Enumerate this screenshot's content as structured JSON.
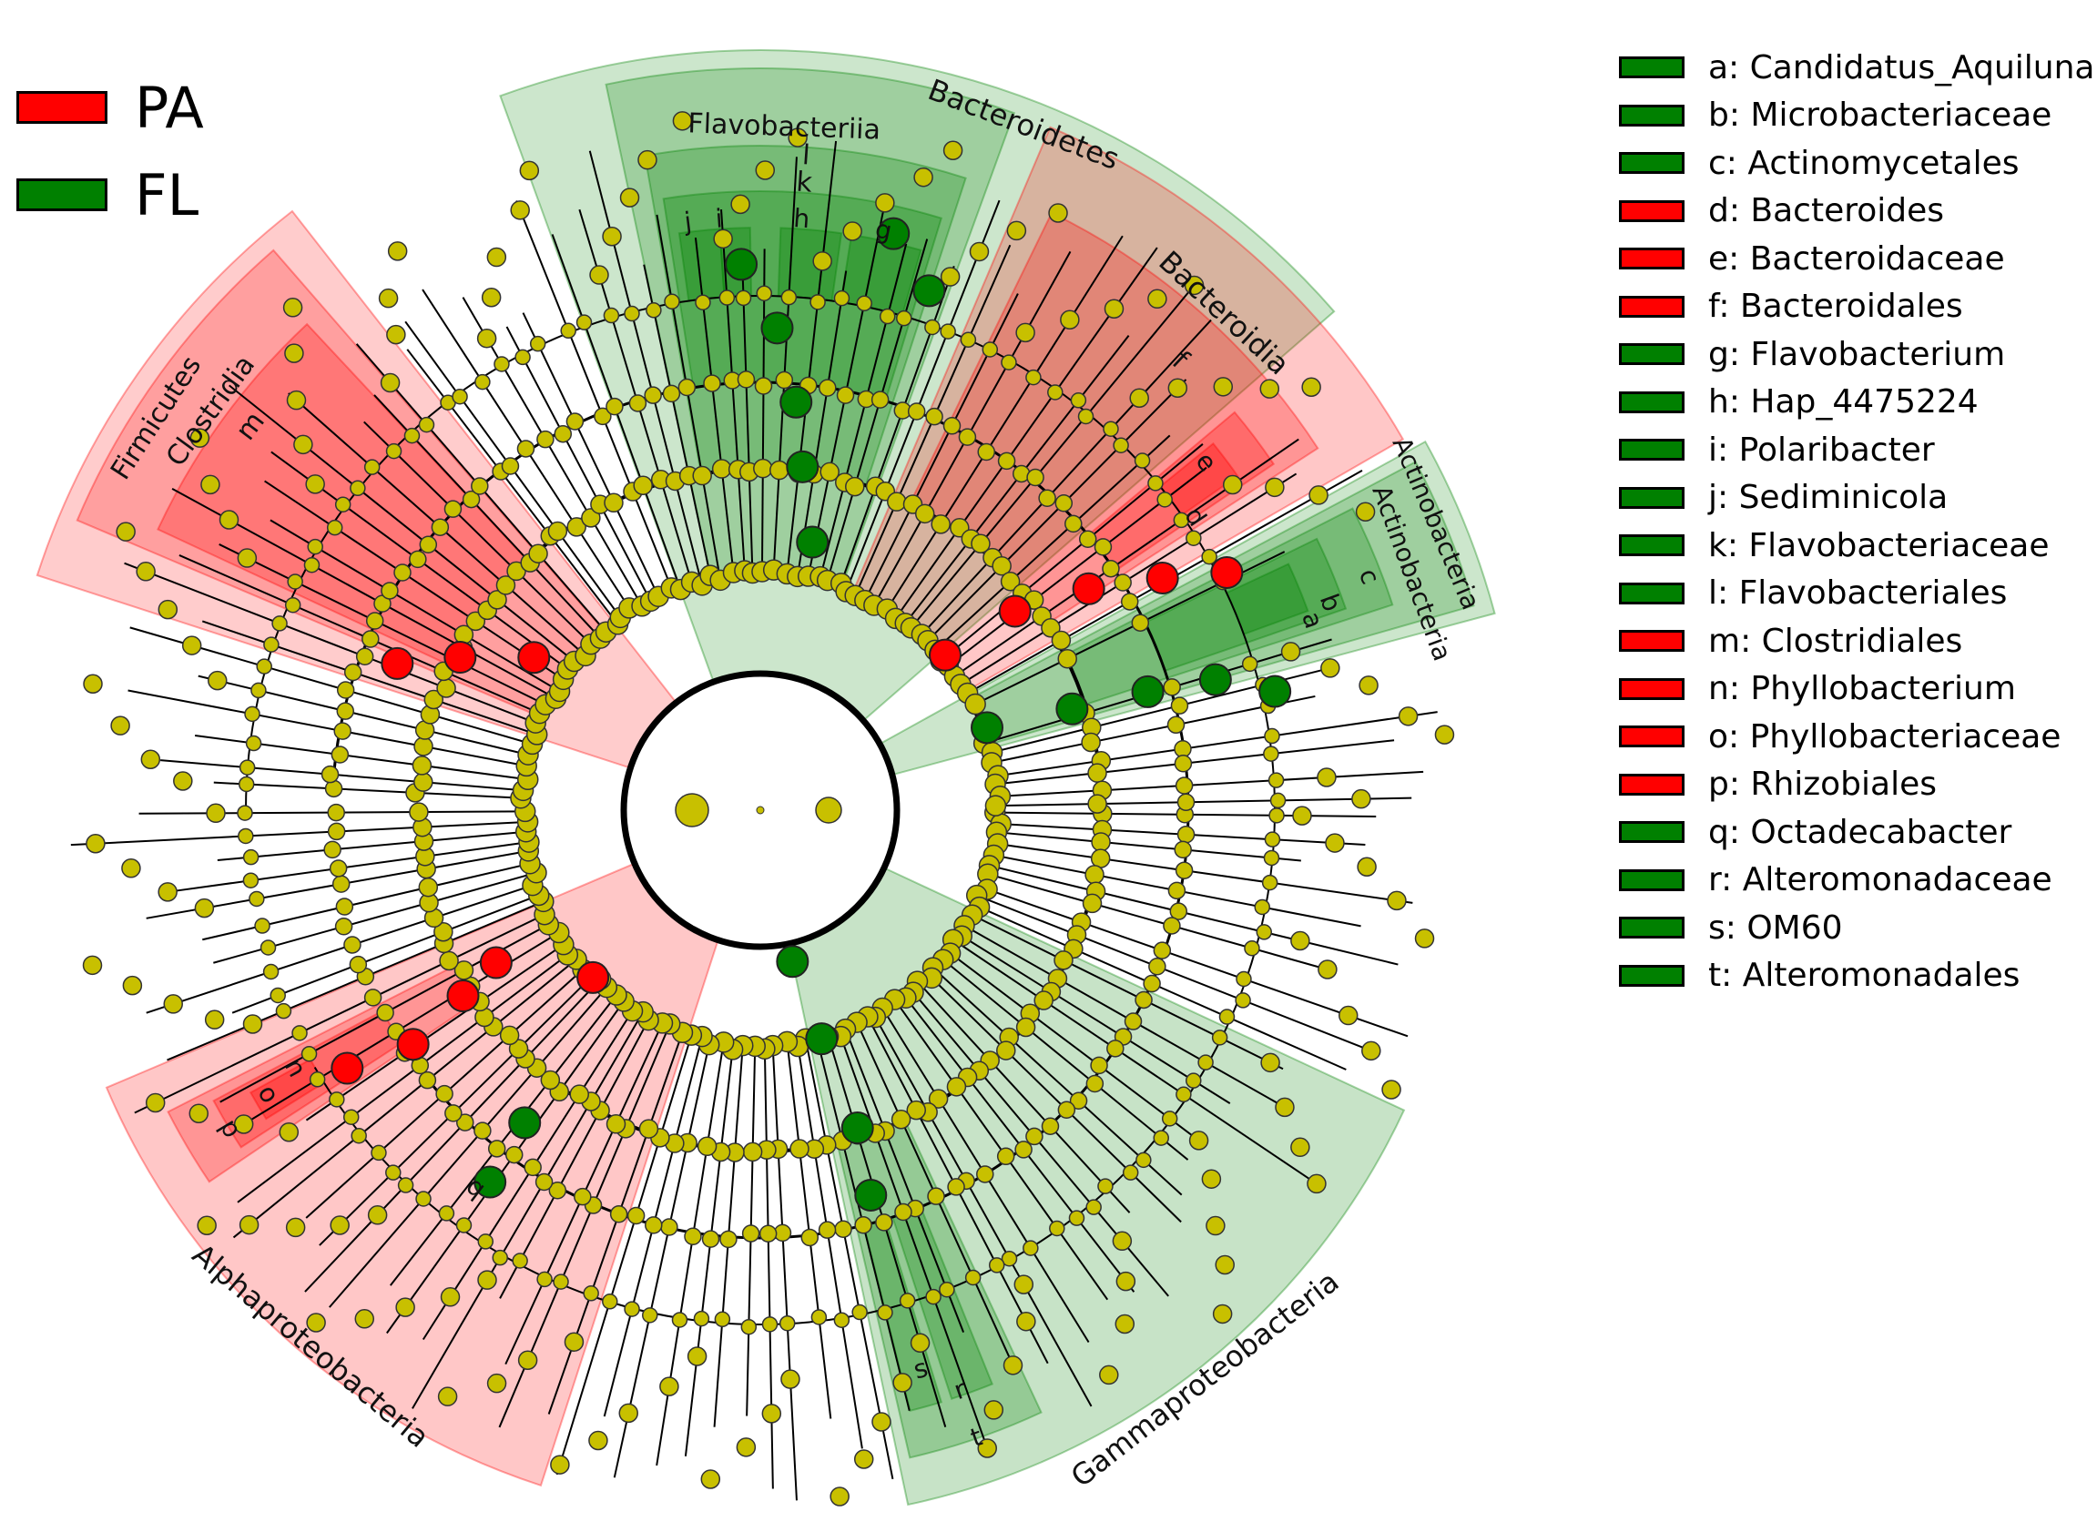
{
  "colors": {
    "PA": "#ff0000",
    "FL": "#008000",
    "neutral": "#c8c000"
  },
  "group_legend": [
    {
      "label": "PA",
      "color": "#ff0000"
    },
    {
      "label": "FL",
      "color": "#008000"
    }
  ],
  "taxa_legend": [
    {
      "label": "a: Candidatus_Aquiluna",
      "color": "#008000"
    },
    {
      "label": "b: Microbacteriaceae",
      "color": "#008000"
    },
    {
      "label": "c: Actinomycetales",
      "color": "#008000"
    },
    {
      "label": "d: Bacteroides",
      "color": "#ff0000"
    },
    {
      "label": "e: Bacteroidaceae",
      "color": "#ff0000"
    },
    {
      "label": "f: Bacteroidales",
      "color": "#ff0000"
    },
    {
      "label": "g: Flavobacterium",
      "color": "#008000"
    },
    {
      "label": "h: Hap_4475224",
      "color": "#008000"
    },
    {
      "label": "i: Polaribacter",
      "color": "#008000"
    },
    {
      "label": "j: Sediminicola",
      "color": "#008000"
    },
    {
      "label": "k: Flavobacteriaceae",
      "color": "#008000"
    },
    {
      "label": "l: Flavobacteriales",
      "color": "#008000"
    },
    {
      "label": "m: Clostridiales",
      "color": "#ff0000"
    },
    {
      "label": "n: Phyllobacterium",
      "color": "#ff0000"
    },
    {
      "label": "o: Phyllobacteriaceae",
      "color": "#ff0000"
    },
    {
      "label": "p: Rhizobiales",
      "color": "#ff0000"
    },
    {
      "label": "q: Octadecabacter",
      "color": "#008000"
    },
    {
      "label": "r: Alteromonadaceae",
      "color": "#008000"
    },
    {
      "label": "s: OM60",
      "color": "#008000"
    },
    {
      "label": "t: Alteromonadales",
      "color": "#008000"
    }
  ],
  "clades": [
    {
      "name": "Firmicutes",
      "level": "phylum",
      "group": "PA"
    },
    {
      "name": "Clostridia",
      "level": "class",
      "group": "PA"
    },
    {
      "name": "m",
      "level": "order",
      "group": "PA"
    },
    {
      "name": "Bacteroidetes",
      "level": "phylum",
      "group": "FL"
    },
    {
      "name": "Flavobacteriia",
      "level": "class",
      "group": "FL"
    },
    {
      "name": "l",
      "level": "order",
      "group": "FL"
    },
    {
      "name": "k",
      "level": "family",
      "group": "FL"
    },
    {
      "name": "j",
      "level": "genus",
      "group": "FL"
    },
    {
      "name": "i",
      "level": "genus",
      "group": "FL"
    },
    {
      "name": "h",
      "level": "genus",
      "group": "FL"
    },
    {
      "name": "g",
      "level": "genus",
      "group": "FL"
    },
    {
      "name": "Bacteroidia",
      "level": "class",
      "group": "PA"
    },
    {
      "name": "f",
      "level": "order",
      "group": "PA"
    },
    {
      "name": "e",
      "level": "family",
      "group": "PA"
    },
    {
      "name": "d",
      "level": "genus",
      "group": "PA"
    },
    {
      "name": "Actinobacteria",
      "level": "phylum",
      "group": "FL"
    },
    {
      "name": "Actinobacteria",
      "level": "class",
      "group": "FL"
    },
    {
      "name": "c",
      "level": "order",
      "group": "FL"
    },
    {
      "name": "b",
      "level": "family",
      "group": "FL"
    },
    {
      "name": "a",
      "level": "genus",
      "group": "FL"
    },
    {
      "name": "Gammaproteobacteria",
      "level": "class",
      "group": "FL"
    },
    {
      "name": "t",
      "level": "order",
      "group": "FL"
    },
    {
      "name": "r",
      "level": "family",
      "group": "FL"
    },
    {
      "name": "s",
      "level": "family",
      "group": "FL"
    },
    {
      "name": "Alphaproteobacteria",
      "level": "class",
      "group": "PA"
    },
    {
      "name": "p",
      "level": "order",
      "group": "PA"
    },
    {
      "name": "o",
      "level": "family",
      "group": "PA"
    },
    {
      "name": "n",
      "level": "genus",
      "group": "PA"
    },
    {
      "name": "q",
      "level": "genus",
      "group": "FL"
    }
  ]
}
